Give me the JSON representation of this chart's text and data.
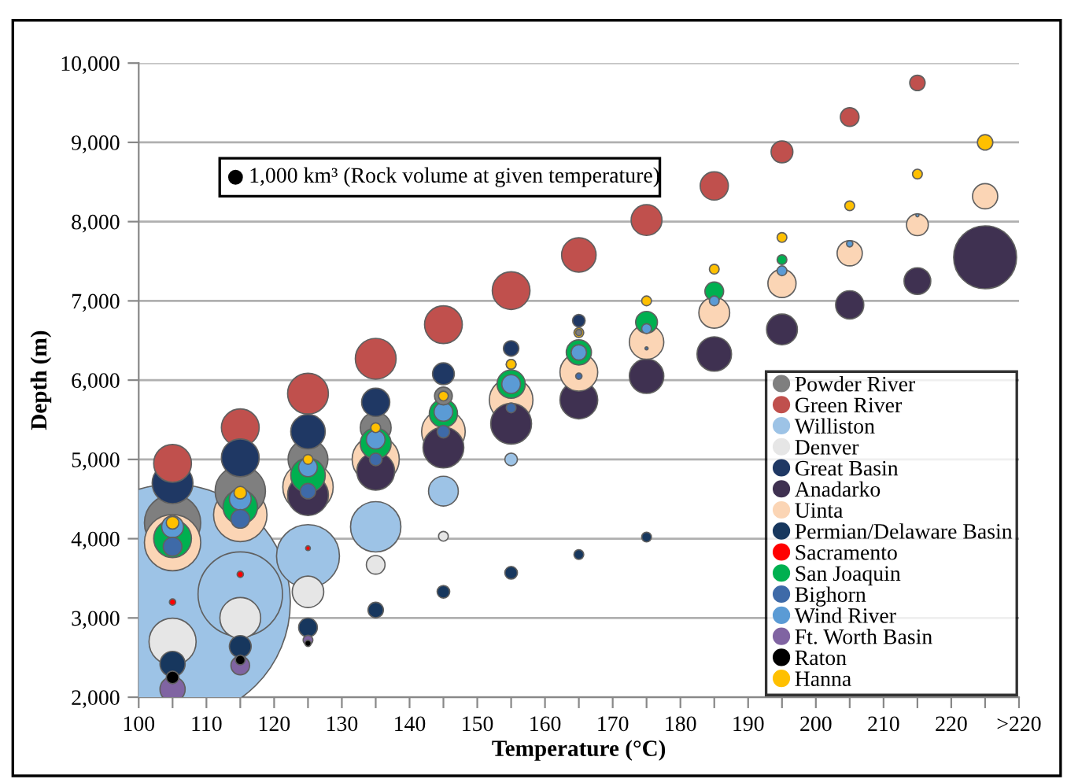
{
  "chart_data": {
    "type": "bubble",
    "xlabel": "Temperature (°C)",
    "ylabel": "Depth (m)",
    "xlim": [
      100,
      230
    ],
    "xticks": [
      100,
      {
        "value": 105,
        "label": null
      },
      110,
      {
        "value": 115,
        "label": null
      },
      120,
      {
        "value": 125,
        "label": null
      },
      130,
      {
        "value": 135,
        "label": null
      },
      140,
      {
        "value": 145,
        "label": null
      },
      150,
      {
        "value": 155,
        "label": null
      },
      160,
      {
        "value": 165,
        "label": null
      },
      170,
      {
        "value": 175,
        "label": null
      },
      180,
      {
        "value": 185,
        "label": null
      },
      190,
      {
        "value": 195,
        "label": null
      },
      200,
      {
        "value": 205,
        "label": null
      },
      210,
      {
        "value": 215,
        "label": null
      },
      220,
      {
        "value": 225,
        "label": null
      },
      {
        "value": 230,
        "label": ">220"
      }
    ],
    "ylim": [
      2000,
      10000
    ],
    "yticks": [
      {
        "value": 2000,
        "label": "2,000"
      },
      {
        "value": 3000,
        "label": "3,000"
      },
      {
        "value": 4000,
        "label": "4,000"
      },
      {
        "value": 5000,
        "label": "5,000"
      },
      {
        "value": 6000,
        "label": "6,000"
      },
      {
        "value": 7000,
        "label": "7,000"
      },
      {
        "value": 8000,
        "label": "8,000"
      },
      {
        "value": 9000,
        "label": "9,000"
      },
      {
        "value": 10000,
        "label": "10,000"
      }
    ],
    "grid": "y",
    "legend": "bottom right",
    "marker": "circle",
    "size_legend": [
      {
        "value": 1000,
        "label": "1,000 km³ (Rock volume at given temperature)"
      }
    ],
    "series": [
      {
        "name": "Powder River",
        "color": "#7f7f7f",
        "x": [
          105,
          115,
          125,
          135,
          145,
          155,
          165
        ],
        "values": [
          4200,
          4600,
          5000,
          5400,
          5800,
          6200,
          6600
        ],
        "sizes": [
          20000,
          16000,
          10000,
          6000,
          2000,
          600,
          250
        ]
      },
      {
        "name": "Green River",
        "color": "#c0504d",
        "x": [
          105,
          115,
          125,
          135,
          145,
          155,
          165,
          175,
          185,
          195,
          205,
          215
        ],
        "values": [
          4950,
          5400,
          5830,
          6270,
          6700,
          7130,
          7580,
          8020,
          8450,
          8880,
          9320,
          9750
        ],
        "sizes": [
          9000,
          9000,
          10500,
          10500,
          9000,
          9000,
          7500,
          6000,
          5000,
          3000,
          2200,
          1500
        ]
      },
      {
        "name": "Williston",
        "color": "#9dc3e6",
        "x": [
          105,
          115,
          125,
          135,
          145,
          155
        ],
        "values": [
          3200,
          3300,
          3780,
          4150,
          4600,
          5000
        ],
        "sizes": [
          350000,
          45000,
          25000,
          16000,
          5600,
          1000
        ]
      },
      {
        "name": "Denver",
        "color": "#e6e6e6",
        "x": [
          105,
          115,
          125,
          135,
          145
        ],
        "values": [
          2700,
          3000,
          3330,
          3670,
          4030
        ],
        "sizes": [
          14000,
          10500,
          6250,
          2200,
          600
        ]
      },
      {
        "name": "Great Basin",
        "color": "#1f3864",
        "x": [
          105,
          115,
          125,
          135,
          145,
          155,
          165
        ],
        "values": [
          4700,
          5020,
          5350,
          5720,
          6080,
          6400,
          6750
        ],
        "sizes": [
          10500,
          9000,
          7500,
          5000,
          3000,
          1500,
          1000
        ]
      },
      {
        "name": "Anadarko",
        "color": "#3f3151",
        "x": [
          125,
          135,
          145,
          155,
          165,
          175,
          185,
          195,
          205,
          215,
          225
        ],
        "values": [
          4550,
          4850,
          5150,
          5450,
          5750,
          6050,
          6330,
          6640,
          6950,
          7250,
          7550
        ],
        "sizes": [
          10500,
          9000,
          10500,
          10500,
          9000,
          7500,
          7500,
          6000,
          5000,
          4500,
          25000
        ]
      },
      {
        "name": "Uinta",
        "color": "#fbd5b5",
        "x": [
          105,
          115,
          125,
          135,
          145,
          155,
          165,
          175,
          185,
          195,
          205,
          215,
          225
        ],
        "values": [
          3950,
          4300,
          4650,
          5000,
          5350,
          5750,
          6100,
          6480,
          6850,
          7220,
          7600,
          7960,
          8320
        ],
        "sizes": [
          20000,
          18000,
          16000,
          14000,
          12000,
          12000,
          9000,
          7500,
          6000,
          5000,
          4000,
          3000,
          4000
        ]
      },
      {
        "name": "Permian/Delaware Basin",
        "color": "#17375e",
        "x": [
          105,
          115,
          125,
          135,
          145,
          155,
          165,
          175
        ],
        "values": [
          2420,
          2640,
          2880,
          3100,
          3330,
          3570,
          3800,
          4020
        ],
        "sizes": [
          4000,
          3000,
          2200,
          1500,
          1000,
          1000,
          600,
          600
        ]
      },
      {
        "name": "Sacramento",
        "color": "#ff0000",
        "x": [
          105,
          115,
          125
        ],
        "values": [
          3200,
          3550,
          3880
        ],
        "sizes": [
          250,
          250,
          140
        ]
      },
      {
        "name": "San Joaquin",
        "color": "#00b050",
        "x": [
          105,
          115,
          125,
          135,
          145,
          155,
          165,
          175,
          185,
          195
        ],
        "values": [
          4000,
          4400,
          4800,
          5200,
          5580,
          5950,
          6350,
          6730,
          7120,
          7520
        ],
        "sizes": [
          9000,
          7500,
          7500,
          6000,
          5000,
          5000,
          4000,
          3000,
          2200,
          600
        ]
      },
      {
        "name": "Bighorn",
        "color": "#3e6aa8",
        "x": [
          105,
          115,
          125,
          135,
          145,
          155,
          165,
          175
        ],
        "values": [
          3900,
          4250,
          4600,
          5000,
          5350,
          5650,
          6050,
          6400
        ],
        "sizes": [
          2200,
          2200,
          1500,
          1000,
          1000,
          600,
          250,
          60
        ]
      },
      {
        "name": "Wind River",
        "color": "#5b9bd5",
        "x": [
          105,
          115,
          125,
          135,
          145,
          155,
          165,
          175,
          185,
          195,
          205,
          215
        ],
        "values": [
          4150,
          4500,
          4900,
          5250,
          5600,
          5950,
          6350,
          6650,
          7000,
          7380,
          7720,
          8080
        ],
        "sizes": [
          3000,
          3000,
          2200,
          2200,
          2200,
          2200,
          1500,
          600,
          600,
          600,
          250,
          60
        ]
      },
      {
        "name": "Ft. Worth Basin",
        "color": "#8064a2",
        "x": [
          105,
          115,
          125
        ],
        "values": [
          2100,
          2400,
          2720
        ],
        "sizes": [
          4000,
          2200,
          600
        ]
      },
      {
        "name": "Raton",
        "color": "#000000",
        "x": [
          105,
          115,
          125
        ],
        "values": [
          2250,
          2470,
          2680
        ],
        "sizes": [
          1000,
          600,
          250
        ]
      },
      {
        "name": "Hanna",
        "color": "#ffc000",
        "x": [
          105,
          115,
          125,
          135,
          145,
          155,
          165,
          175,
          185,
          195,
          205,
          215,
          225
        ],
        "values": [
          4200,
          4580,
          5000,
          5400,
          5800,
          6200,
          6600,
          7000,
          7400,
          7800,
          8200,
          8600,
          9000
        ],
        "sizes": [
          1000,
          1000,
          600,
          600,
          600,
          600,
          600,
          600,
          600,
          600,
          600,
          600,
          1500
        ]
      }
    ]
  }
}
